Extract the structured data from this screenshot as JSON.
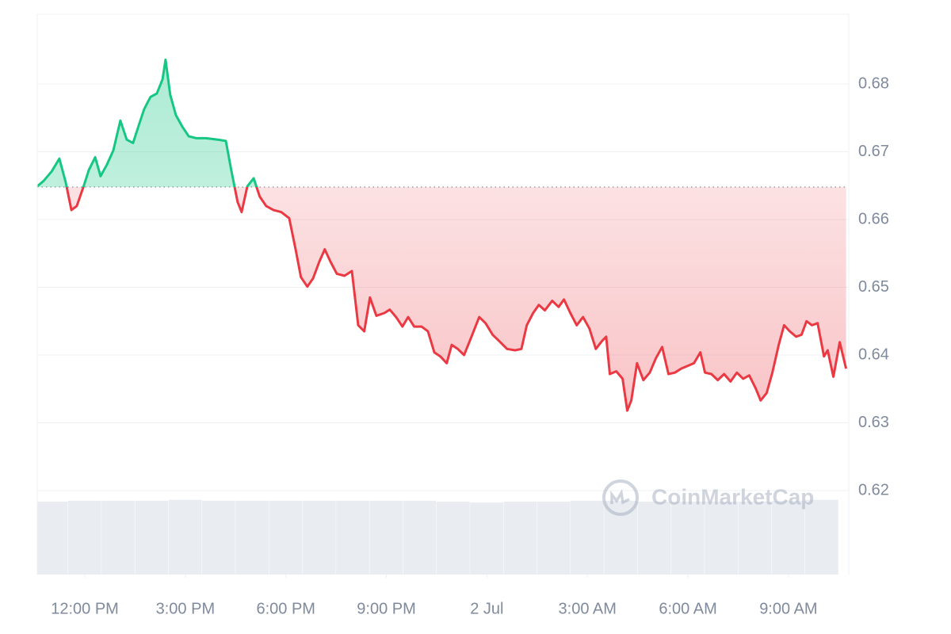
{
  "chart_data": {
    "type": "line",
    "x": [
      -1.42,
      -1.23,
      -0.99,
      -0.76,
      -0.57,
      -0.4,
      -0.24,
      -0.05,
      0.12,
      0.31,
      0.47,
      0.66,
      0.85,
      1.06,
      1.25,
      1.44,
      1.61,
      1.77,
      1.96,
      2.15,
      2.32,
      2.41,
      2.55,
      2.72,
      2.91,
      3.1,
      3.33,
      3.62,
      3.97,
      4.21,
      4.37,
      4.56,
      4.68,
      4.85,
      5.04,
      5.22,
      5.41,
      5.63,
      5.86,
      6.1,
      6.29,
      6.45,
      6.64,
      6.81,
      7.0,
      7.16,
      7.33,
      7.52,
      7.75,
      7.97,
      8.16,
      8.34,
      8.51,
      8.7,
      8.94,
      9.1,
      9.29,
      9.48,
      9.65,
      9.83,
      10.05,
      10.24,
      10.43,
      10.61,
      10.8,
      10.95,
      11.13,
      11.32,
      11.54,
      11.77,
      11.96,
      12.17,
      12.36,
      12.6,
      12.84,
      13.03,
      13.19,
      13.38,
      13.55,
      13.73,
      13.95,
      14.14,
      14.3,
      14.49,
      14.68,
      14.87,
      15.06,
      15.25,
      15.44,
      15.56,
      15.67,
      15.86,
      16.05,
      16.19,
      16.31,
      16.48,
      16.67,
      16.86,
      17.04,
      17.23,
      17.42,
      17.61,
      17.8,
      17.99,
      18.18,
      18.37,
      18.51,
      18.7,
      18.89,
      19.08,
      19.27,
      19.46,
      19.65,
      19.83,
      20.02,
      20.17,
      20.35,
      20.52,
      20.71,
      20.87,
      21.04,
      21.23,
      21.39,
      21.54,
      21.7,
      21.87,
      22.06,
      22.17,
      22.34,
      22.53,
      22.72
    ],
    "values": [
      0.6649,
      0.6657,
      0.6671,
      0.669,
      0.6655,
      0.6614,
      0.662,
      0.6647,
      0.6673,
      0.6692,
      0.6664,
      0.6681,
      0.6702,
      0.6746,
      0.6718,
      0.6713,
      0.6739,
      0.6763,
      0.6781,
      0.6786,
      0.6807,
      0.6836,
      0.6784,
      0.6754,
      0.6737,
      0.6723,
      0.672,
      0.672,
      0.6718,
      0.6716,
      0.6673,
      0.6626,
      0.6611,
      0.6649,
      0.6661,
      0.6634,
      0.662,
      0.6614,
      0.6611,
      0.6602,
      0.6556,
      0.6515,
      0.6501,
      0.6513,
      0.6538,
      0.6556,
      0.6538,
      0.652,
      0.6517,
      0.6524,
      0.6444,
      0.6435,
      0.6485,
      0.6458,
      0.6462,
      0.6467,
      0.6456,
      0.6442,
      0.6456,
      0.6442,
      0.6442,
      0.6435,
      0.6404,
      0.6398,
      0.6388,
      0.6415,
      0.6409,
      0.64,
      0.6427,
      0.6456,
      0.6447,
      0.643,
      0.6421,
      0.6409,
      0.6407,
      0.6409,
      0.6444,
      0.6462,
      0.6474,
      0.6466,
      0.648,
      0.6471,
      0.6482,
      0.6462,
      0.6444,
      0.6456,
      0.6439,
      0.6409,
      0.6421,
      0.6427,
      0.6372,
      0.6376,
      0.6365,
      0.6318,
      0.6333,
      0.6388,
      0.6363,
      0.6374,
      0.6395,
      0.6412,
      0.6372,
      0.6374,
      0.638,
      0.6384,
      0.6388,
      0.6404,
      0.6374,
      0.6372,
      0.6363,
      0.6372,
      0.6361,
      0.6374,
      0.6365,
      0.637,
      0.6351,
      0.6333,
      0.6344,
      0.6374,
      0.6415,
      0.6444,
      0.6435,
      0.6427,
      0.643,
      0.645,
      0.6444,
      0.6447,
      0.6398,
      0.6407,
      0.6368,
      0.6419,
      0.638
    ],
    "reference_value": 0.6648,
    "up_color": "#16c784",
    "down_color": "#ea3943",
    "xlim": [
      -1.42,
      22.8
    ],
    "xticks": [
      {
        "value": 0,
        "label": "12:00 PM"
      },
      {
        "value": 3,
        "label": "3:00 PM"
      },
      {
        "value": 6,
        "label": "6:00 PM"
      },
      {
        "value": 9,
        "label": "9:00 PM"
      },
      {
        "value": 12,
        "label": "2 Jul"
      },
      {
        "value": 15,
        "label": "3:00 AM"
      },
      {
        "value": 18,
        "label": "6:00 AM"
      },
      {
        "value": 21,
        "label": "9:00 AM"
      }
    ],
    "ylim": [
      0.6076,
      0.6903
    ],
    "yticks": [
      0.62,
      0.63,
      0.64,
      0.65,
      0.66,
      0.67,
      0.68
    ],
    "grid": true,
    "volume": {
      "x": [
        -1,
        0,
        1,
        2,
        3,
        4,
        5,
        6,
        7,
        8,
        9,
        10,
        11,
        12,
        13,
        14,
        15,
        16,
        17,
        18,
        19,
        20,
        21,
        22
      ],
      "values": [
        80,
        81,
        81,
        81,
        82,
        81,
        81,
        81,
        81,
        81,
        81,
        81,
        80,
        79,
        80,
        80,
        81,
        81,
        80,
        80,
        80,
        80,
        81,
        82
      ],
      "lim": [
        0,
        100
      ],
      "color": "#e9ecf1"
    },
    "watermark": "CoinMarketCap"
  }
}
